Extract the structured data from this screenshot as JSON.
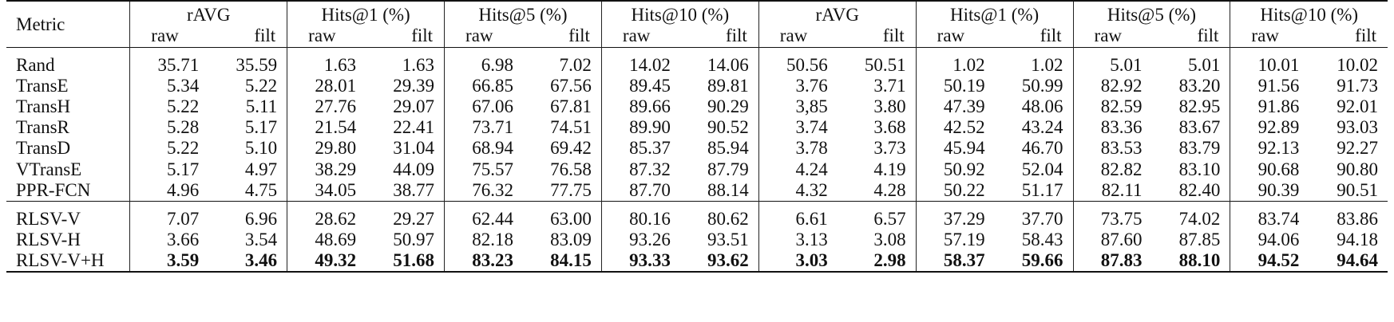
{
  "header": {
    "metric_label": "Metric",
    "groups": [
      "rAVG",
      "Hits@1 (%)",
      "Hits@5 (%)",
      "Hits@10 (%)",
      "rAVG",
      "Hits@1 (%)",
      "Hits@5 (%)",
      "Hits@10 (%)"
    ],
    "raw_label": "raw",
    "filt_label": "filt"
  },
  "baselines": [
    {
      "name": "Rand",
      "values": [
        "35.71",
        "35.59",
        "1.63",
        "1.63",
        "6.98",
        "7.02",
        "14.02",
        "14.06",
        "50.56",
        "50.51",
        "1.02",
        "1.02",
        "5.01",
        "5.01",
        "10.01",
        "10.02"
      ]
    },
    {
      "name": "TransE",
      "values": [
        "5.34",
        "5.22",
        "28.01",
        "29.39",
        "66.85",
        "67.56",
        "89.45",
        "89.81",
        "3.76",
        "3.71",
        "50.19",
        "50.99",
        "82.92",
        "83.20",
        "91.56",
        "91.73"
      ]
    },
    {
      "name": "TransH",
      "values": [
        "5.22",
        "5.11",
        "27.76",
        "29.07",
        "67.06",
        "67.81",
        "89.66",
        "90.29",
        "3,85",
        "3.80",
        "47.39",
        "48.06",
        "82.59",
        "82.95",
        "91.86",
        "92.01"
      ]
    },
    {
      "name": "TransR",
      "values": [
        "5.28",
        "5.17",
        "21.54",
        "22.41",
        "73.71",
        "74.51",
        "89.90",
        "90.52",
        "3.74",
        "3.68",
        "42.52",
        "43.24",
        "83.36",
        "83.67",
        "92.89",
        "93.03"
      ]
    },
    {
      "name": "TransD",
      "values": [
        "5.22",
        "5.10",
        "29.80",
        "31.04",
        "68.94",
        "69.42",
        "85.37",
        "85.94",
        "3.78",
        "3.73",
        "45.94",
        "46.70",
        "83.53",
        "83.79",
        "92.13",
        "92.27"
      ]
    },
    {
      "name": "VTransE",
      "values": [
        "5.17",
        "4.97",
        "38.29",
        "44.09",
        "75.57",
        "76.58",
        "87.32",
        "87.79",
        "4.24",
        "4.19",
        "50.92",
        "52.04",
        "82.82",
        "83.10",
        "90.68",
        "90.80"
      ]
    },
    {
      "name": "PPR-FCN",
      "values": [
        "4.96",
        "4.75",
        "34.05",
        "38.77",
        "76.32",
        "77.75",
        "87.70",
        "88.14",
        "4.32",
        "4.28",
        "50.22",
        "51.17",
        "82.11",
        "82.40",
        "90.39",
        "90.51"
      ]
    }
  ],
  "ours": [
    {
      "name": "RLSV-V",
      "values": [
        "7.07",
        "6.96",
        "28.62",
        "29.27",
        "62.44",
        "63.00",
        "80.16",
        "80.62",
        "6.61",
        "6.57",
        "37.29",
        "37.70",
        "73.75",
        "74.02",
        "83.74",
        "83.86"
      ]
    },
    {
      "name": "RLSV-H",
      "values": [
        "3.66",
        "3.54",
        "48.69",
        "50.97",
        "82.18",
        "83.09",
        "93.26",
        "93.51",
        "3.13",
        "3.08",
        "57.19",
        "58.43",
        "87.60",
        "87.85",
        "94.06",
        "94.18"
      ]
    },
    {
      "name": "RLSV-V+H",
      "values": [
        "3.59",
        "3.46",
        "49.32",
        "51.68",
        "83.23",
        "84.15",
        "93.33",
        "93.62",
        "3.03",
        "2.98",
        "58.37",
        "59.66",
        "87.83",
        "88.10",
        "94.52",
        "94.64"
      ]
    }
  ]
}
